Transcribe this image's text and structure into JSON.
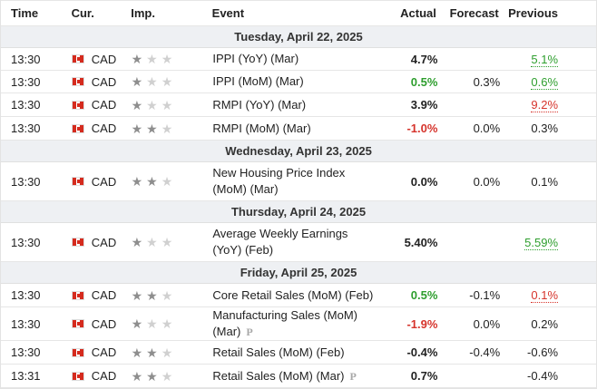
{
  "header": {
    "time": "Time",
    "cur": "Cur.",
    "imp": "Imp.",
    "event": "Event",
    "actual": "Actual",
    "forecast": "Forecast",
    "previous": "Previous"
  },
  "colors": {
    "positive": "#2e9e2e",
    "negative": "#d6342c",
    "flag_red": "#d52b1e"
  },
  "groups": [
    {
      "date": "Tuesday, April 22, 2025",
      "rows": [
        {
          "time": "13:30",
          "cur": "CAD",
          "imp": 1,
          "event": "IPPI (YoY) (Mar)",
          "actual": "4.7%",
          "actual_color": "",
          "forecast": "",
          "previous": "5.1%",
          "previous_style": "under-g",
          "prelim": ""
        },
        {
          "time": "13:30",
          "cur": "CAD",
          "imp": 1,
          "event": "IPPI (MoM) (Mar)",
          "actual": "0.5%",
          "actual_color": "green",
          "forecast": "0.3%",
          "previous": "0.6%",
          "previous_style": "under-g",
          "prelim": ""
        },
        {
          "time": "13:30",
          "cur": "CAD",
          "imp": 1,
          "event": "RMPI (YoY) (Mar)",
          "actual": "3.9%",
          "actual_color": "",
          "forecast": "",
          "previous": "9.2%",
          "previous_style": "under-r",
          "prelim": ""
        },
        {
          "time": "13:30",
          "cur": "CAD",
          "imp": 2,
          "event": "RMPI (MoM) (Mar)",
          "actual": "-1.0%",
          "actual_color": "red",
          "forecast": "0.0%",
          "previous": "0.3%",
          "previous_style": "",
          "prelim": ""
        }
      ]
    },
    {
      "date": "Wednesday, April 23, 2025",
      "rows": [
        {
          "time": "13:30",
          "cur": "CAD",
          "imp": 2,
          "event": "New Housing Price Index (MoM) (Mar)",
          "actual": "0.0%",
          "actual_color": "",
          "forecast": "0.0%",
          "previous": "0.1%",
          "previous_style": "",
          "prelim": ""
        }
      ]
    },
    {
      "date": "Thursday, April 24, 2025",
      "rows": [
        {
          "time": "13:30",
          "cur": "CAD",
          "imp": 1,
          "event": "Average Weekly Earnings (YoY) (Feb)",
          "actual": "5.40%",
          "actual_color": "",
          "forecast": "",
          "previous": "5.59%",
          "previous_style": "under-g",
          "prelim": ""
        }
      ]
    },
    {
      "date": "Friday, April 25, 2025",
      "rows": [
        {
          "time": "13:30",
          "cur": "CAD",
          "imp": 2,
          "event": "Core Retail Sales (MoM) (Feb)",
          "actual": "0.5%",
          "actual_color": "green",
          "forecast": "-0.1%",
          "previous": "0.1%",
          "previous_style": "under-r",
          "prelim": ""
        },
        {
          "time": "13:30",
          "cur": "CAD",
          "imp": 1,
          "event": "Manufacturing Sales (MoM) (Mar)",
          "actual": "-1.9%",
          "actual_color": "red",
          "forecast": "0.0%",
          "previous": "0.2%",
          "previous_style": "",
          "prelim": "P"
        },
        {
          "time": "13:30",
          "cur": "CAD",
          "imp": 2,
          "event": "Retail Sales (MoM) (Feb)",
          "actual": "-0.4%",
          "actual_color": "",
          "forecast": "-0.4%",
          "previous": "-0.6%",
          "previous_style": "",
          "prelim": ""
        },
        {
          "time": "13:31",
          "cur": "CAD",
          "imp": 2,
          "event": "Retail Sales (MoM) (Mar)",
          "actual": "0.7%",
          "actual_color": "",
          "forecast": "",
          "previous": "-0.4%",
          "previous_style": "",
          "prelim": "P"
        }
      ]
    }
  ]
}
